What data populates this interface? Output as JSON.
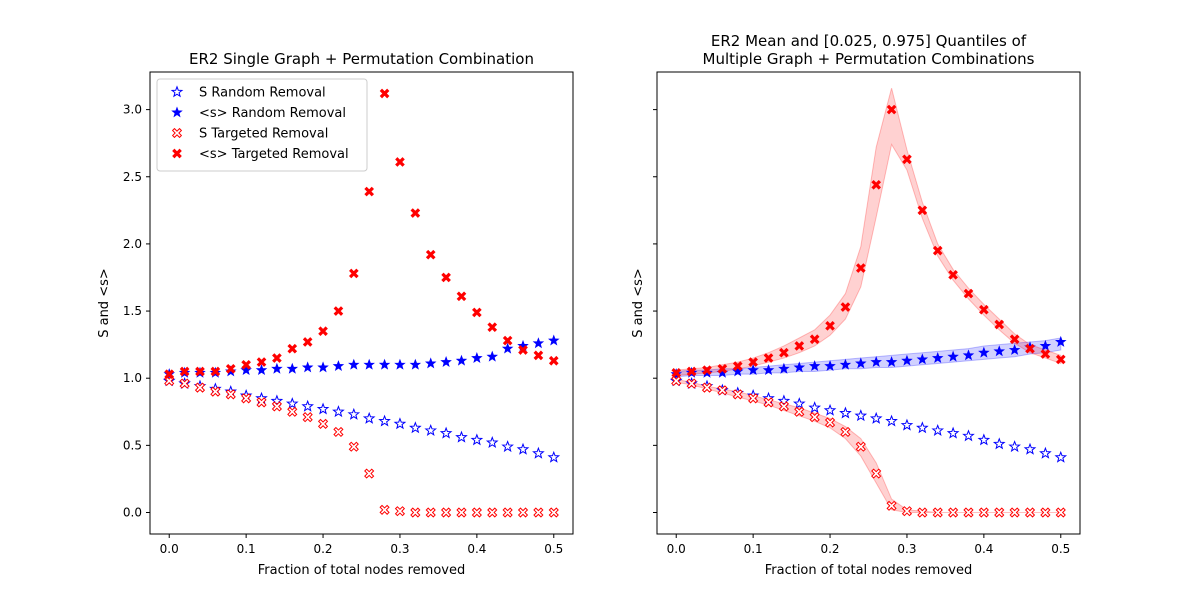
{
  "chart_data": [
    {
      "type": "scatter",
      "title_lines": [
        "ER2 Single Graph + Permutation Combination"
      ],
      "xlabel": "Fraction of total nodes removed",
      "ylabel": "S and <s>",
      "xlim": [
        -0.025,
        0.525
      ],
      "ylim": [
        -0.16,
        3.28
      ],
      "xticks": [
        0.0,
        0.1,
        0.2,
        0.3,
        0.4,
        0.5
      ],
      "xtick_labels": [
        "0.0",
        "0.1",
        "0.2",
        "0.3",
        "0.4",
        "0.5"
      ],
      "yticks": [
        0.0,
        0.5,
        1.0,
        1.5,
        2.0,
        2.5,
        3.0
      ],
      "ytick_labels": [
        "0.0",
        "0.5",
        "1.0",
        "1.5",
        "2.0",
        "2.5",
        "3.0"
      ],
      "legend": {
        "position": "upper-left",
        "entries": [
          "S Random Removal",
          "<s> Random Removal",
          "S Targeted Removal",
          "<s> Targeted Removal"
        ]
      },
      "x": [
        0.0,
        0.02,
        0.04,
        0.06,
        0.08,
        0.1,
        0.12,
        0.14,
        0.16,
        0.18,
        0.2,
        0.22,
        0.24,
        0.26,
        0.28,
        0.3,
        0.32,
        0.34,
        0.36,
        0.38,
        0.4,
        0.42,
        0.44,
        0.46,
        0.48,
        0.5
      ],
      "series": [
        {
          "name": "S Random Removal",
          "marker": "star-open",
          "color": "#0000ff",
          "values": [
            0.98,
            0.96,
            0.94,
            0.92,
            0.9,
            0.87,
            0.85,
            0.83,
            0.81,
            0.79,
            0.77,
            0.75,
            0.73,
            0.7,
            0.68,
            0.66,
            0.63,
            0.61,
            0.59,
            0.56,
            0.54,
            0.52,
            0.49,
            0.47,
            0.44,
            0.41
          ]
        },
        {
          "name": "<s> Random Removal",
          "marker": "star-filled",
          "color": "#0000ff",
          "values": [
            1.03,
            1.04,
            1.04,
            1.04,
            1.05,
            1.06,
            1.06,
            1.07,
            1.07,
            1.08,
            1.08,
            1.09,
            1.1,
            1.1,
            1.1,
            1.1,
            1.1,
            1.11,
            1.12,
            1.13,
            1.15,
            1.16,
            1.22,
            1.24,
            1.26,
            1.28
          ]
        },
        {
          "name": "S Targeted Removal",
          "marker": "x-open",
          "color": "#ff0000",
          "values": [
            0.98,
            0.96,
            0.93,
            0.9,
            0.88,
            0.85,
            0.82,
            0.79,
            0.75,
            0.71,
            0.66,
            0.6,
            0.49,
            0.29,
            0.02,
            0.01,
            0.0,
            0.0,
            0.0,
            0.0,
            0.0,
            0.0,
            0.0,
            0.0,
            0.0,
            0.0
          ]
        },
        {
          "name": "<s> Targeted Removal",
          "marker": "x-filled",
          "color": "#ff0000",
          "values": [
            1.03,
            1.05,
            1.05,
            1.05,
            1.07,
            1.1,
            1.12,
            1.15,
            1.22,
            1.27,
            1.35,
            1.5,
            1.78,
            2.39,
            3.12,
            2.61,
            2.23,
            1.92,
            1.75,
            1.61,
            1.49,
            1.38,
            1.28,
            1.21,
            1.17,
            1.13
          ]
        }
      ]
    },
    {
      "type": "scatter",
      "title_lines": [
        "ER2 Mean and [0.025, 0.975] Quantiles of",
        "Multiple Graph + Permutation Combinations"
      ],
      "xlabel": "Fraction of total nodes removed",
      "ylabel": "S and <s>",
      "shared_y": true,
      "xlim": [
        -0.025,
        0.525
      ],
      "ylim": [
        -0.16,
        3.28
      ],
      "xticks": [
        0.0,
        0.1,
        0.2,
        0.3,
        0.4,
        0.5
      ],
      "xtick_labels": [
        "0.0",
        "0.1",
        "0.2",
        "0.3",
        "0.4",
        "0.5"
      ],
      "yticks": [
        0.0,
        0.5,
        1.0,
        1.5,
        2.0,
        2.5,
        3.0
      ],
      "x": [
        0.0,
        0.02,
        0.04,
        0.06,
        0.08,
        0.1,
        0.12,
        0.14,
        0.16,
        0.18,
        0.2,
        0.22,
        0.24,
        0.26,
        0.28,
        0.3,
        0.32,
        0.34,
        0.36,
        0.38,
        0.4,
        0.42,
        0.44,
        0.46,
        0.48,
        0.5
      ],
      "series": [
        {
          "name": "S Random Removal",
          "marker": "star-open",
          "color": "#0000ff",
          "values": [
            0.98,
            0.96,
            0.94,
            0.91,
            0.89,
            0.87,
            0.85,
            0.83,
            0.81,
            0.78,
            0.76,
            0.74,
            0.72,
            0.7,
            0.68,
            0.65,
            0.63,
            0.61,
            0.59,
            0.57,
            0.54,
            0.51,
            0.49,
            0.47,
            0.44,
            0.41
          ]
        },
        {
          "name": "<s> Random Removal",
          "marker": "star-filled",
          "color": "#0000ff",
          "values": [
            1.03,
            1.04,
            1.04,
            1.04,
            1.05,
            1.06,
            1.06,
            1.07,
            1.08,
            1.09,
            1.09,
            1.1,
            1.11,
            1.12,
            1.12,
            1.13,
            1.14,
            1.15,
            1.16,
            1.17,
            1.19,
            1.2,
            1.21,
            1.23,
            1.24,
            1.27
          ],
          "band_low": [
            1.01,
            1.02,
            1.02,
            1.02,
            1.03,
            1.03,
            1.04,
            1.04,
            1.05,
            1.05,
            1.06,
            1.07,
            1.07,
            1.08,
            1.08,
            1.09,
            1.1,
            1.11,
            1.12,
            1.13,
            1.14,
            1.15,
            1.16,
            1.18,
            1.19,
            1.21
          ],
          "band_high": [
            1.05,
            1.06,
            1.06,
            1.07,
            1.07,
            1.08,
            1.09,
            1.1,
            1.11,
            1.12,
            1.13,
            1.14,
            1.15,
            1.16,
            1.17,
            1.18,
            1.19,
            1.2,
            1.21,
            1.22,
            1.24,
            1.25,
            1.26,
            1.27,
            1.28,
            1.3
          ]
        },
        {
          "name": "S Targeted Removal",
          "marker": "x-open",
          "color": "#ff0000",
          "values": [
            0.98,
            0.96,
            0.93,
            0.91,
            0.88,
            0.85,
            0.82,
            0.79,
            0.75,
            0.71,
            0.67,
            0.6,
            0.49,
            0.29,
            0.05,
            0.01,
            0.0,
            0.0,
            0.0,
            0.0,
            0.0,
            0.0,
            0.0,
            0.0,
            0.0,
            0.0
          ],
          "band_low": [
            0.97,
            0.95,
            0.92,
            0.89,
            0.86,
            0.83,
            0.8,
            0.76,
            0.72,
            0.68,
            0.63,
            0.55,
            0.42,
            0.22,
            0.02,
            0.0,
            0.0,
            0.0,
            0.0,
            0.0,
            0.0,
            0.0,
            0.0,
            0.0,
            0.0,
            0.0
          ],
          "band_high": [
            0.99,
            0.97,
            0.94,
            0.92,
            0.9,
            0.87,
            0.84,
            0.81,
            0.78,
            0.74,
            0.7,
            0.64,
            0.55,
            0.37,
            0.1,
            0.02,
            0.01,
            0.0,
            0.0,
            0.0,
            0.0,
            0.0,
            0.0,
            0.0,
            0.0,
            0.0
          ]
        },
        {
          "name": "<s> Targeted Removal",
          "marker": "x-filled",
          "color": "#ff0000",
          "values": [
            1.04,
            1.05,
            1.06,
            1.07,
            1.09,
            1.12,
            1.15,
            1.19,
            1.24,
            1.29,
            1.39,
            1.53,
            1.82,
            2.44,
            3.0,
            2.63,
            2.25,
            1.95,
            1.77,
            1.63,
            1.51,
            1.4,
            1.29,
            1.22,
            1.18,
            1.14
          ],
          "band_low": [
            1.02,
            1.03,
            1.04,
            1.05,
            1.07,
            1.09,
            1.12,
            1.15,
            1.19,
            1.24,
            1.32,
            1.44,
            1.68,
            2.2,
            2.74,
            2.55,
            2.19,
            1.91,
            1.73,
            1.59,
            1.47,
            1.36,
            1.26,
            1.19,
            1.15,
            1.11
          ],
          "band_high": [
            1.06,
            1.07,
            1.08,
            1.1,
            1.12,
            1.15,
            1.19,
            1.24,
            1.3,
            1.36,
            1.47,
            1.63,
            1.98,
            2.72,
            3.16,
            2.7,
            2.31,
            2.0,
            1.81,
            1.67,
            1.55,
            1.44,
            1.33,
            1.25,
            1.21,
            1.17
          ]
        }
      ]
    }
  ]
}
